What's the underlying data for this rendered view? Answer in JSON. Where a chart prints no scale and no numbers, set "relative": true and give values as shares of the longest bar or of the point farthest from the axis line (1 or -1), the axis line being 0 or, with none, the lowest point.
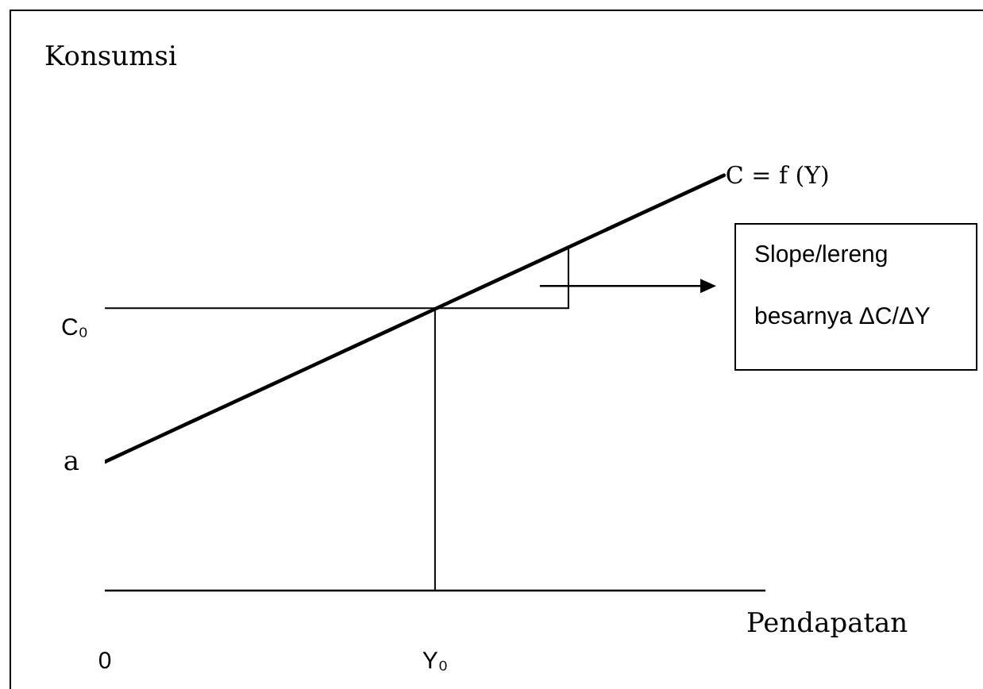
{
  "chart_data": {
    "type": "line",
    "xlabel": "Pendapatan",
    "ylabel": "Konsumsi",
    "relative": true,
    "marker": "none",
    "categories": [
      "0",
      null,
      null,
      null,
      null,
      null,
      null,
      null,
      "Y₀",
      null,
      null,
      null,
      null,
      null,
      null,
      null
    ],
    "series": [
      {
        "name": "C = f (Y)",
        "color": "#000000",
        "values": [
          0.31,
          0.356,
          0.402,
          0.448,
          0.494,
          0.54,
          0.586,
          0.632,
          0.678,
          0.724,
          0.77,
          0.816,
          0.862,
          0.908,
          0.954,
          1
        ]
      }
    ],
    "ref_lines": [
      {
        "axis": "x",
        "value": "Y₀",
        "color": "#000000"
      },
      {
        "axis": "y",
        "value": 0.68,
        "label": "C₀",
        "color": "#000000"
      }
    ],
    "annotations": [
      {
        "text": "a",
        "x": "0",
        "y": 0.31
      },
      "Slope/lereng besarnya ΔC/ΔY"
    ]
  }
}
